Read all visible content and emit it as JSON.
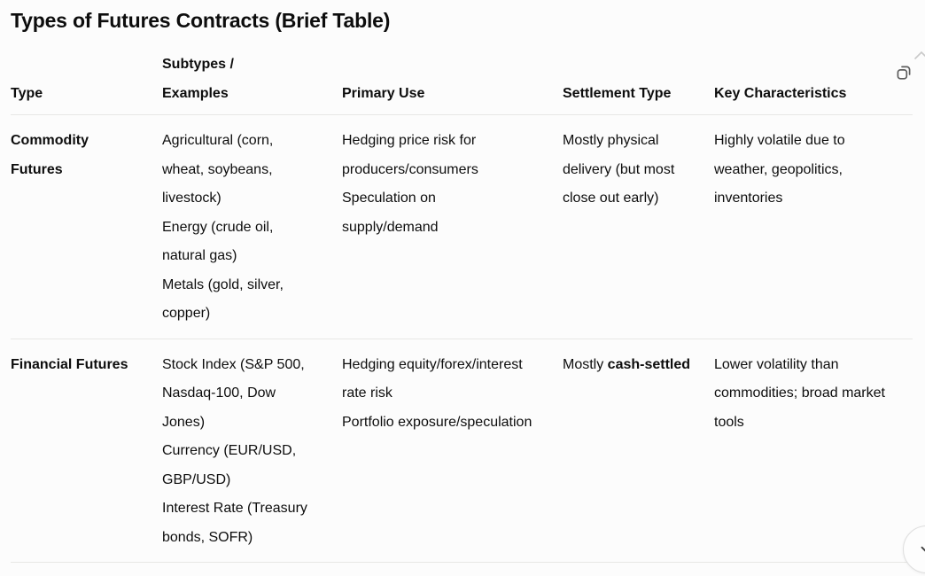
{
  "theme": {
    "background": "#fcfcfc",
    "text_color": "#0d0d0d",
    "border_color": "#e7e7e5",
    "icon_color": "#5d5d5d",
    "chevron_color": "#3f3f3f"
  },
  "title": "Types of Futures Contracts (Brief Table)",
  "icons": {
    "copy": "copy-icon",
    "scroll_down": "chevron-down-icon",
    "edge": "chevron-up-icon"
  },
  "table": {
    "headers": [
      {
        "id": "type",
        "label": "Type",
        "lines": [
          "Type"
        ]
      },
      {
        "id": "subtypes-examples",
        "label": "Subtypes / Examples",
        "lines": [
          "Subtypes /",
          "Examples"
        ]
      },
      {
        "id": "primary-use",
        "label": "Primary Use",
        "lines": [
          "Primary Use"
        ]
      },
      {
        "id": "settlement-type",
        "label": "Settlement Type",
        "lines": [
          "Settlement Type"
        ]
      },
      {
        "id": "key-characteristics",
        "label": "Key Characteristics",
        "lines": [
          "Key Characteristics"
        ]
      }
    ],
    "rows": [
      {
        "type": "Commodity Futures",
        "subtypes": [
          "Agricultural (corn, wheat, soybeans, livestock)",
          "Energy (crude oil, natural gas)",
          "Metals (gold, silver, copper)"
        ],
        "primary_use": [
          "Hedging price risk for producers/consumers",
          "Speculation on supply/demand"
        ],
        "settlement": [
          {
            "text": "Mostly physical delivery (but most close out early)",
            "bold": false
          }
        ],
        "key_characteristics": "Highly volatile due to weather, geopolitics, inventories"
      },
      {
        "type": "Financial Futures",
        "subtypes": [
          "Stock Index (S&P 500, Nasdaq-100, Dow Jones)",
          "Currency (EUR/USD, GBP/USD)",
          "Interest Rate (Treasury bonds, SOFR)"
        ],
        "primary_use": [
          "Hedging equity/forex/interest rate risk",
          "Portfolio exposure/speculation"
        ],
        "settlement": [
          {
            "text": "Mostly ",
            "bold": false
          },
          {
            "text": "cash-settled",
            "bold": true
          }
        ],
        "key_characteristics": "Lower volatility than commodities; broad market tools"
      }
    ]
  }
}
